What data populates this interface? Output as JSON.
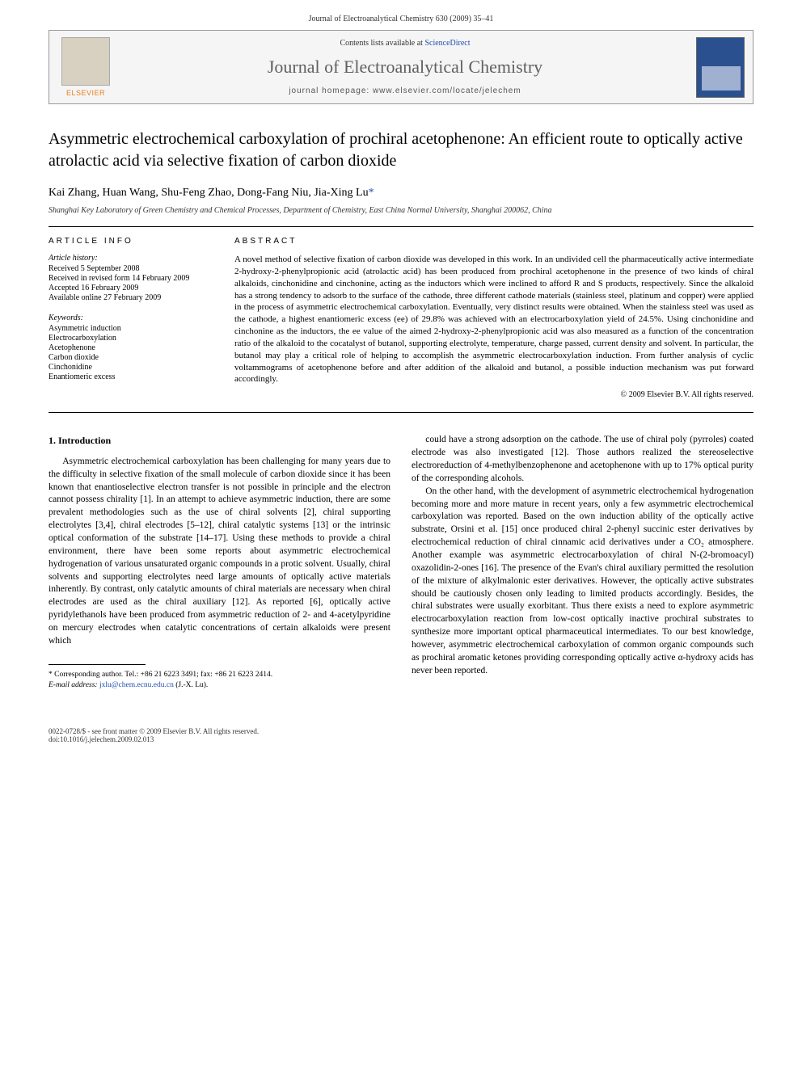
{
  "page_header": "Journal of Electroanalytical Chemistry 630 (2009) 35–41",
  "masthead": {
    "logo_text": "ELSEVIER",
    "contents_prefix": "Contents lists available at ",
    "contents_link": "ScienceDirect",
    "journal_name": "Journal of Electroanalytical Chemistry",
    "homepage_label": "journal homepage: www.elsevier.com/locate/jelechem",
    "cover_bg": "#2a5090"
  },
  "title": "Asymmetric electrochemical carboxylation of prochiral acetophenone: An efficient route to optically active atrolactic acid via selective fixation of carbon dioxide",
  "authors": "Kai Zhang, Huan Wang, Shu-Feng Zhao, Dong-Fang Niu, Jia-Xing Lu",
  "corr_mark": "*",
  "affiliation": "Shanghai Key Laboratory of Green Chemistry and Chemical Processes, Department of Chemistry, East China Normal University, Shanghai 200062, China",
  "article_info": {
    "heading": "ARTICLE INFO",
    "history_label": "Article history:",
    "history": [
      "Received 5 September 2008",
      "Received in revised form 14 February 2009",
      "Accepted 16 February 2009",
      "Available online 27 February 2009"
    ],
    "keywords_label": "Keywords:",
    "keywords": [
      "Asymmetric induction",
      "Electrocarboxylation",
      "Acetophenone",
      "Carbon dioxide",
      "Cinchonidine",
      "Enantiomeric excess"
    ]
  },
  "abstract": {
    "heading": "ABSTRACT",
    "text": "A novel method of selective fixation of carbon dioxide was developed in this work. In an undivided cell the pharmaceutically active intermediate 2-hydroxy-2-phenylpropionic acid (atrolactic acid) has been produced from prochiral acetophenone in the presence of two kinds of chiral alkaloids, cinchonidine and cinchonine, acting as the inductors which were inclined to afford R and S products, respectively. Since the alkaloid has a strong tendency to adsorb to the surface of the cathode, three different cathode materials (stainless steel, platinum and copper) were applied in the process of asymmetric electrochemical carboxylation. Eventually, very distinct results were obtained. When the stainless steel was used as the cathode, a highest enantiomeric excess (ee) of 29.8% was achieved with an electrocarboxylation yield of 24.5%. Using cinchonidine and cinchonine as the inductors, the ee value of the aimed 2-hydroxy-2-phenylpropionic acid was also measured as a function of the concentration ratio of the alkaloid to the cocatalyst of butanol, supporting electrolyte, temperature, charge passed, current density and solvent. In particular, the butanol may play a critical role of helping to accomplish the asymmetric electrocarboxylation induction. From further analysis of cyclic voltammograms of acetophenone before and after addition of the alkaloid and butanol, a possible induction mechanism was put forward accordingly.",
    "copyright": "© 2009 Elsevier B.V. All rights reserved."
  },
  "body": {
    "section_heading": "1. Introduction",
    "col1_p1": "Asymmetric electrochemical carboxylation has been challenging for many years due to the difficulty in selective fixation of the small molecule of carbon dioxide since it has been known that enantioselective electron transfer is not possible in principle and the electron cannot possess chirality [1]. In an attempt to achieve asymmetric induction, there are some prevalent methodologies such as the use of chiral solvents [2], chiral supporting electrolytes [3,4], chiral electrodes [5–12], chiral catalytic systems [13] or the intrinsic optical conformation of the substrate [14–17]. Using these methods to provide a chiral environment, there have been some reports about asymmetric electrochemical hydrogenation of various unsaturated organic compounds in a protic solvent. Usually, chiral solvents and supporting electrolytes need large amounts of optically active materials inherently. By contrast, only catalytic amounts of chiral materials are necessary when chiral electrodes are used as the chiral auxiliary [12]. As reported [6], optically active pyridylethanols have been produced from asymmetric reduction of 2- and 4-acetylpyridine on mercury electrodes when catalytic concentrations of certain alkaloids were present which",
    "col2_p1": "could have a strong adsorption on the cathode. The use of chiral poly (pyrroles) coated electrode was also investigated [12]. Those authors realized the stereoselective electroreduction of 4-methylbenzophenone and acetophenone with up to 17% optical purity of the corresponding alcohols.",
    "col2_p2": "On the other hand, with the development of asymmetric electrochemical hydrogenation becoming more and more mature in recent years, only a few asymmetric electrochemical carboxylation was reported. Based on the own induction ability of the optically active substrate, Orsini et al. [15] once produced chiral 2-phenyl succinic ester derivatives by electrochemical reduction of chiral cinnamic acid derivatives under a CO₂ atmosphere. Another example was asymmetric electrocarboxylation of chiral N-(2-bromoacyl) oxazolidin-2-ones [16]. The presence of the Evan's chiral auxiliary permitted the resolution of the mixture of alkylmalonic ester derivatives. However, the optically active substrates should be cautiously chosen only leading to limited products accordingly. Besides, the chiral substrates were usually exorbitant. Thus there exists a need to explore asymmetric electrocarboxylation reaction from low-cost optically inactive prochiral substrates to synthesize more important optical pharmaceutical intermediates. To our best knowledge, however, asymmetric electrochemical carboxylation of common organic compounds such as prochiral aromatic ketones providing corresponding optically active α-hydroxy acids has never been reported."
  },
  "footnote": {
    "corr_line": "* Corresponding author. Tel.: +86 21 6223 3491; fax: +86 21 6223 2414.",
    "email_label": "E-mail address: ",
    "email": "jxlu@chem.ecnu.edu.cn",
    "email_suffix": " (J.-X. Lu)."
  },
  "footer": {
    "line1": "0022-0728/$ - see front matter © 2009 Elsevier B.V. All rights reserved.",
    "line2": "doi:10.1016/j.jelechem.2009.02.013"
  },
  "colors": {
    "link": "#2050b0",
    "text": "#000000",
    "rule": "#000000",
    "masthead_bg": "#f5f5f5"
  }
}
